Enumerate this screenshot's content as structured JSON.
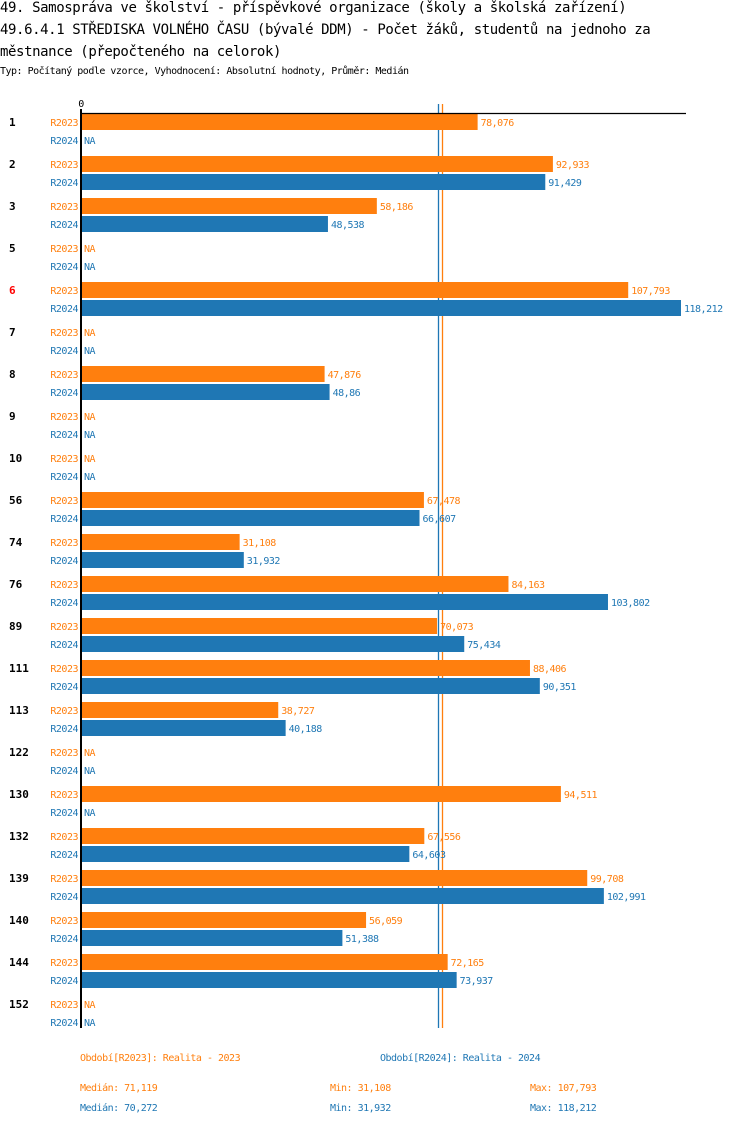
{
  "header": {
    "title_line1": "49. Samospráva ve školství - příspěvkové organizace (školy a školská zařízení)",
    "title_line2": "49.6.4.1 STŘEDISKA VOLNÉHO ČASU (bývalé DDM) - Počet žáků, studentů na jednoho za",
    "title_line3": "městnance (přepočteného na celorok)",
    "subtitle": "Typ: Počítaný podle vzorce, Vyhodnocení: Absolutní hodnoty, Průměr: Medián"
  },
  "colors": {
    "R2023": "#ff7f0e",
    "R2024": "#1f77b4",
    "highlight": "#ff0000",
    "axis": "#000000"
  },
  "chart_data": {
    "type": "bar",
    "orientation": "horizontal",
    "title": "49.6.4.1 STŘEDISKA VOLNÉHO ČASU (bývalé DDM) - Počet žáků, studentů na jednoho zaměstnance (přepočteného na celorok)",
    "xlabel": "",
    "ylabel": "",
    "x_tick_labels": [
      "0"
    ],
    "xlim": [
      0,
      118212
    ],
    "grid": false,
    "highlighted_category": "6",
    "na_label": "NA",
    "categories": [
      "1",
      "2",
      "3",
      "5",
      "6",
      "7",
      "8",
      "9",
      "10",
      "56",
      "74",
      "76",
      "89",
      "111",
      "113",
      "122",
      "130",
      "132",
      "139",
      "140",
      "144",
      "152"
    ],
    "series": [
      {
        "name": "R2023",
        "values": [
          78.076,
          92.933,
          58.186,
          null,
          107.793,
          null,
          47.876,
          null,
          null,
          67.478,
          31.108,
          84.163,
          70.073,
          88.406,
          38.727,
          null,
          94.511,
          67.556,
          99.708,
          56.059,
          72.165,
          null
        ],
        "labels": [
          "78,076",
          "92,933",
          "58,186",
          "NA",
          "107,793",
          "NA",
          "47,876",
          "NA",
          "NA",
          "67,478",
          "31,108",
          "84,163",
          "70,073",
          "88,406",
          "38,727",
          "NA",
          "94,511",
          "67,556",
          "99,708",
          "56,059",
          "72,165",
          "NA"
        ]
      },
      {
        "name": "R2024",
        "values": [
          null,
          91.429,
          48.538,
          null,
          118.212,
          null,
          48.86,
          null,
          null,
          66.607,
          31.932,
          103.802,
          75.434,
          90.351,
          40.188,
          null,
          null,
          64.603,
          102.991,
          51.388,
          73.937,
          null
        ],
        "labels": [
          "NA",
          "91,429",
          "48,538",
          "NA",
          "118,212",
          "NA",
          "48,86",
          "NA",
          "NA",
          "66,607",
          "31,932",
          "103,802",
          "75,434",
          "90,351",
          "40,188",
          "NA",
          "NA",
          "64,603",
          "102,991",
          "51,388",
          "73,937",
          "NA"
        ]
      }
    ],
    "reference_lines": [
      {
        "series": "R2023",
        "type": "median",
        "value": 71.119
      },
      {
        "series": "R2024",
        "type": "median",
        "value": 70.272
      }
    ]
  },
  "legend": {
    "r2023_label": "Období[R2023]: Realita - 2023",
    "r2024_label": "Období[R2024]: Realita - 2024",
    "r2023_median": "Medián: 71,119",
    "r2023_min": "Min: 31,108",
    "r2023_max": "Max: 107,793",
    "r2024_median": "Medián: 70,272",
    "r2024_min": "Min: 31,932",
    "r2024_max": "Max: 118,212"
  }
}
